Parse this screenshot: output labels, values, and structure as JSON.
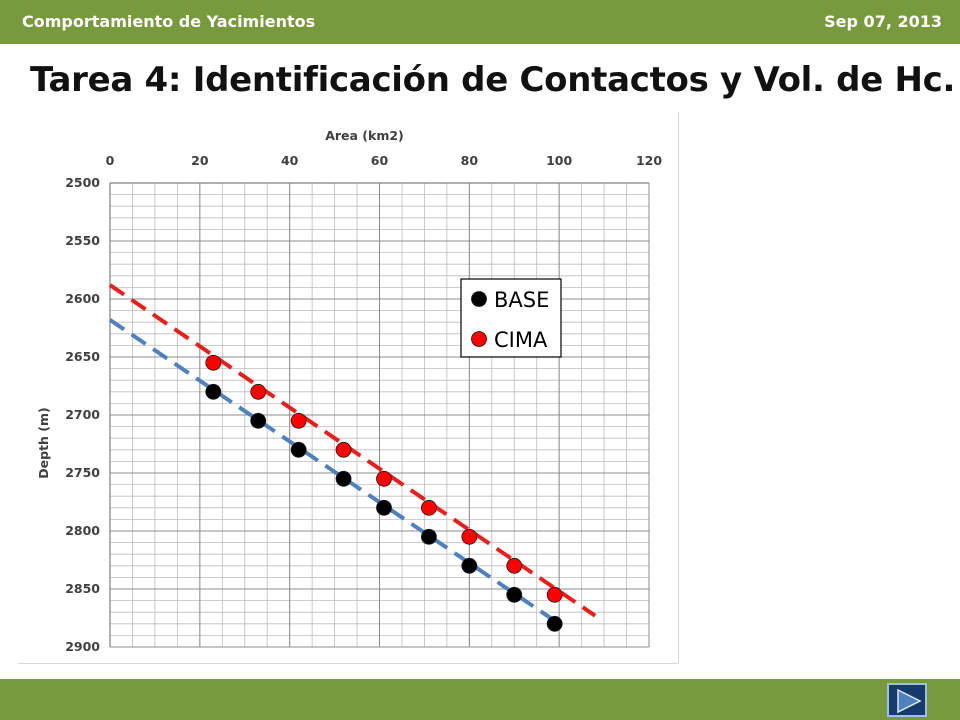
{
  "header": {
    "left_text": "Comportamiento de Yacimientos",
    "right_text": "Sep 07, 2013"
  },
  "slide": {
    "title": "Tarea 4: Identificación de Contactos y Vol. de Hc."
  },
  "nav": {
    "next_icon": "play-next-icon"
  },
  "colors": {
    "bar": "#779a3c",
    "base_line": "#4f81bd",
    "cima_line": "#e8201d",
    "cima_point": "#ff0000",
    "base_point": "#000000"
  },
  "chart_data": {
    "type": "scatter",
    "title": "",
    "xlabel": "Area (km2)",
    "ylabel": "Depth (m)",
    "xlim": [
      0,
      120
    ],
    "ylim": [
      2500,
      2900
    ],
    "y_inverted": true,
    "x_axis_position": "top",
    "x_ticks": [
      0,
      20,
      40,
      60,
      80,
      100,
      120
    ],
    "y_ticks": [
      2500,
      2550,
      2600,
      2650,
      2700,
      2750,
      2800,
      2850,
      2900
    ],
    "grid": true,
    "legend_position": "top-right",
    "series": [
      {
        "name": "BASE",
        "color": "#000000",
        "x": [
          23,
          33,
          42,
          52,
          61,
          71,
          80,
          90,
          99
        ],
        "y": [
          2680,
          2705,
          2730,
          2755,
          2780,
          2805,
          2830,
          2855,
          2880
        ]
      },
      {
        "name": "CIMA",
        "color": "#ff0000",
        "x": [
          23,
          33,
          42,
          52,
          61,
          71,
          80,
          90,
          99
        ],
        "y": [
          2655,
          2680,
          2705,
          2730,
          2755,
          2780,
          2805,
          2830,
          2855
        ]
      }
    ],
    "trendlines": [
      {
        "series": "BASE",
        "color": "#4f81bd",
        "style": "dashed",
        "x": [
          0,
          100
        ],
        "y": [
          2618,
          2880
        ]
      },
      {
        "series": "CIMA",
        "color": "#e8201d",
        "style": "dashed",
        "x": [
          0,
          108
        ],
        "y": [
          2588,
          2873
        ]
      }
    ]
  }
}
